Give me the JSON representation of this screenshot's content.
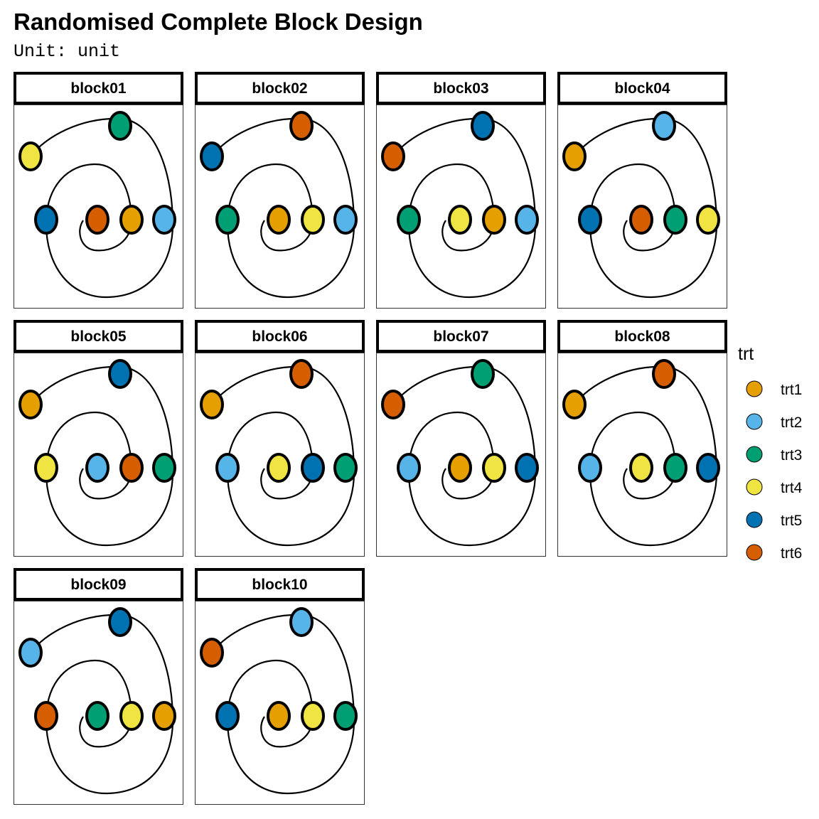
{
  "title": "Randomised Complete Block Design",
  "subtitle": {
    "prefix": "Unit:",
    "value": "unit"
  },
  "colors": {
    "trt1": "#E69F00",
    "trt2": "#56B4E9",
    "trt3": "#009E73",
    "trt4": "#F0E442",
    "trt5": "#0072B2",
    "trt6": "#D55E00"
  },
  "chart_data": {
    "type": "diagram",
    "legend": {
      "title": "trt",
      "items": [
        "trt1",
        "trt2",
        "trt3",
        "trt4",
        "trt5",
        "trt6"
      ],
      "placement": "right"
    },
    "blocks": [
      {
        "label": "block01",
        "units": [
          "trt6",
          "trt1",
          "trt5",
          "trt2",
          "trt4",
          "trt3"
        ]
      },
      {
        "label": "block02",
        "units": [
          "trt1",
          "trt4",
          "trt3",
          "trt2",
          "trt5",
          "trt6"
        ]
      },
      {
        "label": "block03",
        "units": [
          "trt4",
          "trt1",
          "trt3",
          "trt2",
          "trt6",
          "trt5"
        ]
      },
      {
        "label": "block04",
        "units": [
          "trt6",
          "trt3",
          "trt5",
          "trt4",
          "trt1",
          "trt2"
        ]
      },
      {
        "label": "block05",
        "units": [
          "trt2",
          "trt6",
          "trt4",
          "trt3",
          "trt1",
          "trt5"
        ]
      },
      {
        "label": "block06",
        "units": [
          "trt4",
          "trt5",
          "trt2",
          "trt3",
          "trt1",
          "trt6"
        ]
      },
      {
        "label": "block07",
        "units": [
          "trt1",
          "trt4",
          "trt2",
          "trt5",
          "trt6",
          "trt3"
        ]
      },
      {
        "label": "block08",
        "units": [
          "trt4",
          "trt3",
          "trt2",
          "trt5",
          "trt1",
          "trt6"
        ]
      },
      {
        "label": "block09",
        "units": [
          "trt3",
          "trt4",
          "trt6",
          "trt1",
          "trt2",
          "trt5"
        ]
      },
      {
        "label": "block10",
        "units": [
          "trt1",
          "trt4",
          "trt5",
          "trt3",
          "trt6",
          "trt2"
        ]
      }
    ]
  }
}
